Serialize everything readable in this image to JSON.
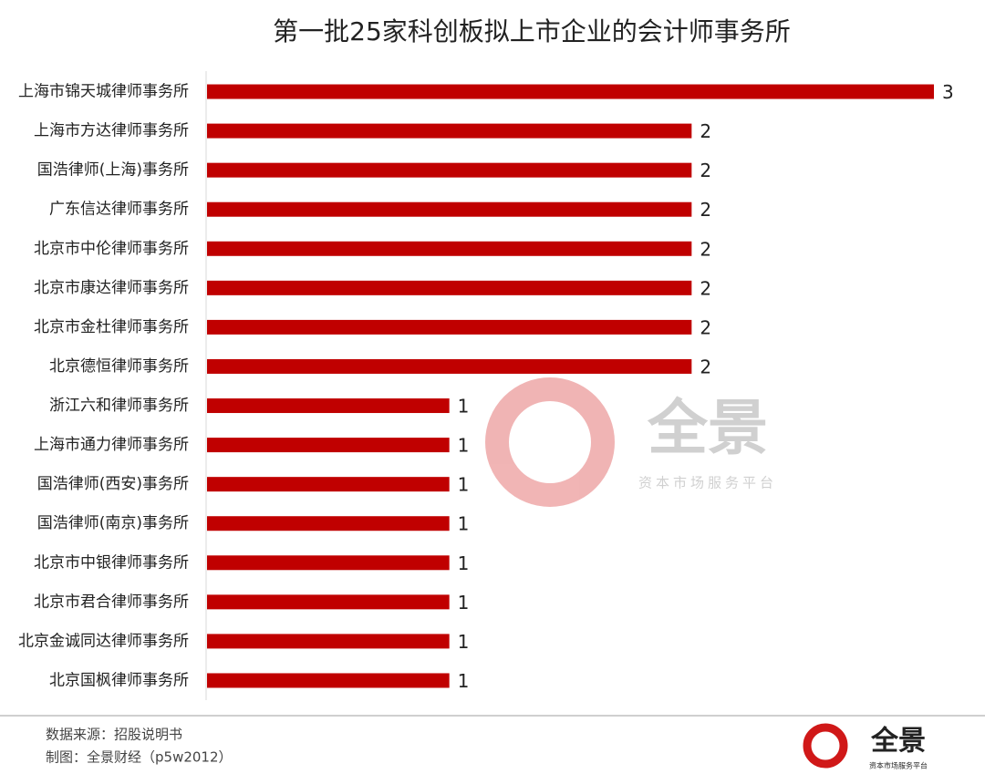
{
  "chart_data": {
    "type": "bar",
    "orientation": "horizontal",
    "title": "第一批25家科创板拟上市企业的会计师事务所",
    "categories": [
      "上海市锦天城律师事务所",
      "上海市方达律师事务所",
      "国浩律师(上海)事务所",
      "广东信达律师事务所",
      "北京市中伦律师事务所",
      "北京市康达律师事务所",
      "北京市金杜律师事务所",
      "北京德恒律师事务所",
      "浙江六和律师事务所",
      "上海市通力律师事务所",
      "国浩律师(西安)事务所",
      "国浩律师(南京)事务所",
      "北京市中银律师事务所",
      "北京市君合律师事务所",
      "北京金诚同达律师事务所",
      "北京国枫律师事务所"
    ],
    "values": [
      3,
      2,
      2,
      2,
      2,
      2,
      2,
      2,
      1,
      1,
      1,
      1,
      1,
      1,
      1,
      1
    ],
    "color": "#c00000",
    "xlim": [
      0,
      3
    ],
    "source": "数据来源：招股说明书",
    "credit": "制图：全景财经（p5w2012）"
  },
  "watermark": {
    "brand": "全景",
    "slogan": "资本市场服务平台"
  },
  "logo": {
    "brand": "全景",
    "slogan": "资本市场服务平台"
  }
}
